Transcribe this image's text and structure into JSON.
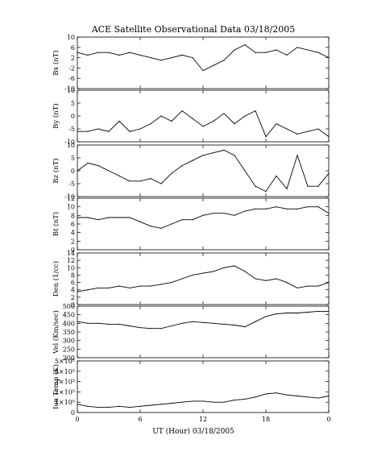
{
  "chart_data": {
    "type": "line",
    "title": "ACE Satellite Observational Data   03/18/2005",
    "xlabel": "UT (Hour)   03/18/2005",
    "x_ticks": [
      "0",
      "6",
      "12",
      "18",
      "0"
    ],
    "xlim": [
      0,
      24
    ],
    "panels": [
      {
        "ylabel": "Bx (nT)",
        "ylim": [
          -10,
          10
        ],
        "ytick_labels": [
          "10",
          "6",
          "2",
          "-2",
          "-6",
          "-10"
        ],
        "ytick_values": [
          10,
          6,
          2,
          -2,
          -6,
          -10
        ],
        "x": [
          0,
          1,
          2,
          3,
          4,
          5,
          6,
          7,
          8,
          9,
          10,
          11,
          12,
          13,
          14,
          15,
          16,
          17,
          18,
          19,
          20,
          21,
          22,
          23,
          24
        ],
        "values": [
          4,
          3,
          4,
          4,
          3,
          4,
          3,
          2,
          1,
          2,
          3,
          2,
          -3,
          -1,
          1,
          5,
          7,
          4,
          4,
          5,
          3,
          6,
          5,
          4,
          2
        ]
      },
      {
        "ylabel": "By (nT)",
        "ylim": [
          -10,
          10
        ],
        "ytick_labels": [
          "10",
          "5",
          "0",
          "-5",
          "-10"
        ],
        "ytick_values": [
          10,
          5,
          0,
          -5,
          -10
        ],
        "x": [
          0,
          1,
          2,
          3,
          4,
          5,
          6,
          7,
          8,
          9,
          10,
          11,
          12,
          13,
          14,
          15,
          16,
          17,
          18,
          19,
          20,
          21,
          22,
          23,
          24
        ],
        "values": [
          -6,
          -6,
          -5,
          -6,
          -2,
          -6,
          -5,
          -3,
          0,
          -2,
          2,
          -1,
          -4,
          -2,
          1,
          -3,
          0,
          2,
          -8,
          -3,
          -5,
          -7,
          -6,
          -5,
          -8
        ]
      },
      {
        "ylabel": "Bz (nT)",
        "ylim": [
          -10,
          10
        ],
        "ytick_labels": [
          "10",
          "5",
          "0",
          "-5",
          "-10"
        ],
        "ytick_values": [
          10,
          5,
          0,
          -5,
          -10
        ],
        "x": [
          0,
          1,
          2,
          3,
          4,
          5,
          6,
          7,
          8,
          9,
          10,
          11,
          12,
          13,
          14,
          15,
          16,
          17,
          18,
          19,
          20,
          21,
          22,
          23,
          24
        ],
        "values": [
          0,
          3,
          2,
          0,
          -2,
          -4,
          -4,
          -3,
          -5,
          -1,
          2,
          4,
          6,
          7,
          8,
          6,
          0,
          -6,
          -8,
          -2,
          -7,
          6,
          -6,
          -6,
          -1
        ]
      },
      {
        "ylabel": "Bt (nT)",
        "ylim": [
          0,
          12
        ],
        "ytick_labels": [
          "12",
          "10",
          "8",
          "6",
          "4",
          "2",
          "0"
        ],
        "ytick_values": [
          12,
          10,
          8,
          6,
          4,
          2,
          0
        ],
        "x": [
          0,
          1,
          2,
          3,
          4,
          5,
          6,
          7,
          8,
          9,
          10,
          11,
          12,
          13,
          14,
          15,
          16,
          17,
          18,
          19,
          20,
          21,
          22,
          23,
          24
        ],
        "values": [
          7.5,
          7.5,
          7,
          7.5,
          7.5,
          7.5,
          6.5,
          5.5,
          5,
          6,
          7,
          7,
          8,
          8.5,
          8.5,
          8,
          9,
          9.5,
          9.5,
          10,
          9.5,
          9.5,
          10,
          10,
          8.5
        ]
      },
      {
        "ylabel": "Den (1/cc)",
        "ylim": [
          0,
          14
        ],
        "ytick_labels": [
          "14",
          "12",
          "10",
          "8",
          "6",
          "4",
          "2",
          "0"
        ],
        "ytick_values": [
          14,
          12,
          10,
          8,
          6,
          4,
          2,
          0
        ],
        "x": [
          0,
          1,
          2,
          3,
          4,
          5,
          6,
          7,
          8,
          9,
          10,
          11,
          12,
          13,
          14,
          15,
          16,
          17,
          18,
          19,
          20,
          21,
          22,
          23,
          24
        ],
        "values": [
          3.5,
          4,
          4.5,
          4.5,
          5,
          4.5,
          5,
          5,
          5.5,
          6,
          7,
          8,
          8.5,
          9,
          10,
          10.5,
          9,
          7,
          6.5,
          7,
          6,
          4.5,
          5,
          5,
          6
        ]
      },
      {
        "ylabel": "Vel (Km/sec)",
        "ylim": [
          200,
          500
        ],
        "ytick_labels": [
          "500",
          "450",
          "400",
          "350",
          "300",
          "250",
          "200"
        ],
        "ytick_values": [
          500,
          450,
          400,
          350,
          300,
          250,
          200
        ],
        "x": [
          0,
          1,
          2,
          3,
          4,
          5,
          6,
          7,
          8,
          9,
          10,
          11,
          12,
          13,
          14,
          15,
          16,
          17,
          18,
          19,
          20,
          21,
          22,
          23,
          24
        ],
        "values": [
          410,
          400,
          400,
          395,
          395,
          385,
          375,
          370,
          370,
          385,
          400,
          410,
          405,
          400,
          395,
          390,
          380,
          410,
          440,
          455,
          460,
          460,
          465,
          470,
          470
        ]
      },
      {
        "ylabel": "Ion Temp (K)",
        "ylim": [
          0,
          500000
        ],
        "ytick_labels": [
          "5×10⁵",
          "4×10⁵",
          "3×10⁵",
          "2×10⁵",
          "1×10⁵",
          "0"
        ],
        "ytick_values": [
          500000,
          400000,
          300000,
          200000,
          100000,
          0
        ],
        "x": [
          0,
          1,
          2,
          3,
          4,
          5,
          6,
          7,
          8,
          9,
          10,
          11,
          12,
          13,
          14,
          15,
          16,
          17,
          18,
          19,
          20,
          21,
          22,
          23,
          24
        ],
        "values": [
          80000,
          60000,
          50000,
          50000,
          60000,
          50000,
          60000,
          70000,
          80000,
          90000,
          100000,
          110000,
          110000,
          100000,
          100000,
          120000,
          130000,
          150000,
          180000,
          190000,
          170000,
          160000,
          150000,
          140000,
          160000
        ]
      }
    ]
  }
}
